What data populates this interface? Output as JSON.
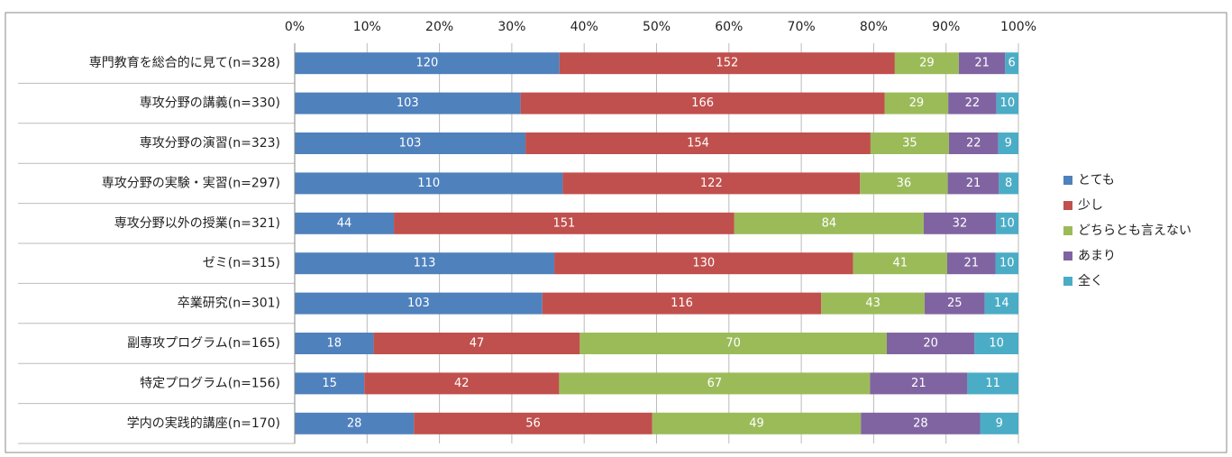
{
  "chart_data": {
    "type": "bar",
    "stack": "percent",
    "orientation": "horizontal",
    "categories": [
      "専門教育を総合的に見て(n=328)",
      "専攻分野の講義(n=330)",
      "専攻分野の演習(n=323)",
      "専攻分野の実験・実習(n=297)",
      "専攻分野以外の授業(n=321)",
      "ゼミ(n=315)",
      "卒業研究(n=301)",
      "副専攻プログラム(n=165)",
      "特定プログラム(n=156)",
      "学内の実践的講座(n=170)"
    ],
    "series": [
      {
        "name": "とても",
        "color": "#4f81bd",
        "values": [
          120,
          103,
          103,
          110,
          44,
          113,
          103,
          18,
          15,
          28
        ]
      },
      {
        "name": "少し",
        "color": "#c0504d",
        "values": [
          152,
          166,
          154,
          122,
          151,
          130,
          116,
          47,
          42,
          56
        ]
      },
      {
        "name": "どちらとも言えない",
        "color": "#9bbb59",
        "values": [
          29,
          29,
          35,
          36,
          84,
          41,
          43,
          70,
          67,
          49
        ]
      },
      {
        "name": "あまり",
        "color": "#8064a2",
        "values": [
          21,
          22,
          22,
          21,
          32,
          21,
          25,
          20,
          21,
          28
        ]
      },
      {
        "name": "全く",
        "color": "#4bacc6",
        "values": [
          6,
          10,
          9,
          8,
          10,
          10,
          14,
          10,
          11,
          9
        ]
      }
    ],
    "xlim": [
      0,
      100
    ],
    "xticks": [
      {
        "value": 0,
        "label": "0%"
      },
      {
        "value": 10,
        "label": "10%"
      },
      {
        "value": 20,
        "label": "20%"
      },
      {
        "value": 30,
        "label": "30%"
      },
      {
        "value": 40,
        "label": "40%"
      },
      {
        "value": 50,
        "label": "50%"
      },
      {
        "value": 60,
        "label": "60%"
      },
      {
        "value": 70,
        "label": "70%"
      },
      {
        "value": 80,
        "label": "80%"
      },
      {
        "value": 90,
        "label": "90%"
      },
      {
        "value": 100,
        "label": "100%"
      }
    ],
    "grid": true,
    "legend": "right"
  }
}
